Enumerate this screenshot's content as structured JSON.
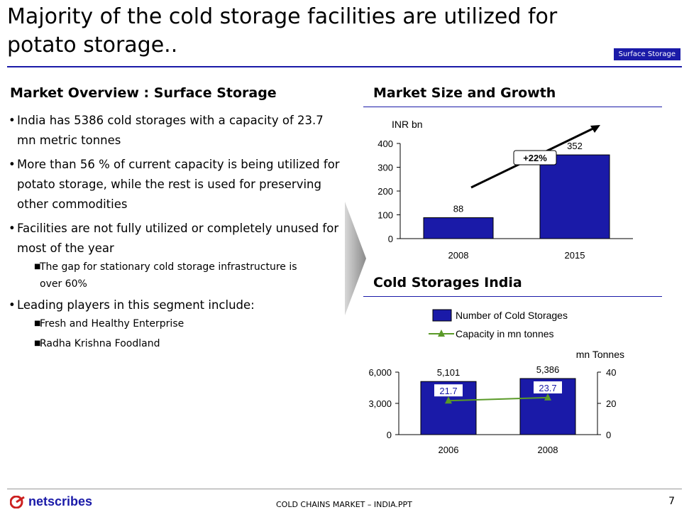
{
  "header": {
    "title": "Majority  of the cold storage facilities are utilized for potato storage..",
    "tag": "Surface Storage"
  },
  "left": {
    "heading": "Market Overview : Surface Storage",
    "bullets": [
      "India has 5386 cold storages with a capacity of 23.7 mn metric tonnes",
      "More than 56 % of current capacity is being utilized for potato storage, while the rest is used for preserving other commodities",
      "Facilities are not fully utilized or completely unused for most of the year"
    ],
    "sub1": [
      "The gap for stationary cold storage infrastructure is over 60%"
    ],
    "bullet4": "Leading players in this segment include:",
    "sub2": [
      "Fresh and Healthy Enterprise",
      "Radha Krishna Foodland"
    ]
  },
  "right": {
    "heading1": "Market Size and Growth",
    "heading2": "Cold Storages India"
  },
  "chart_data": [
    {
      "type": "bar",
      "title": "Market Size and Growth",
      "ylabel": "INR bn",
      "categories": [
        "2008",
        "2015"
      ],
      "values": [
        88,
        352
      ],
      "ylim": [
        0,
        400
      ],
      "yticks": [
        0,
        100,
        200,
        300,
        400
      ],
      "annotation": "+22%",
      "color": "#1a1aa8"
    },
    {
      "type": "bar",
      "title": "Cold Storages India",
      "categories": [
        "2006",
        "2008"
      ],
      "series": [
        {
          "name": "Number of Cold Storages",
          "type": "bar",
          "axis": "left",
          "values": [
            5101,
            5386
          ],
          "labels": [
            "5,101",
            "5,386"
          ],
          "color": "#1a1aa8"
        },
        {
          "name": "Capacity in mn tonnes",
          "type": "line",
          "axis": "right",
          "values": [
            21.7,
            23.7
          ],
          "labels": [
            "21.7",
            "23.7"
          ],
          "color": "#5a9a28"
        }
      ],
      "ylim_left": [
        0,
        6000
      ],
      "yticks_left": [
        "0",
        "3,000",
        "6,000"
      ],
      "ylim_right": [
        0,
        40
      ],
      "yticks_right": [
        "0",
        "20",
        "40"
      ],
      "ylabel_right": "mn Tonnes",
      "legend": "top"
    }
  ],
  "footer": {
    "logo": "netscribes",
    "center": "COLD CHAINS MARKET – INDIA.PPT",
    "page": "7"
  }
}
